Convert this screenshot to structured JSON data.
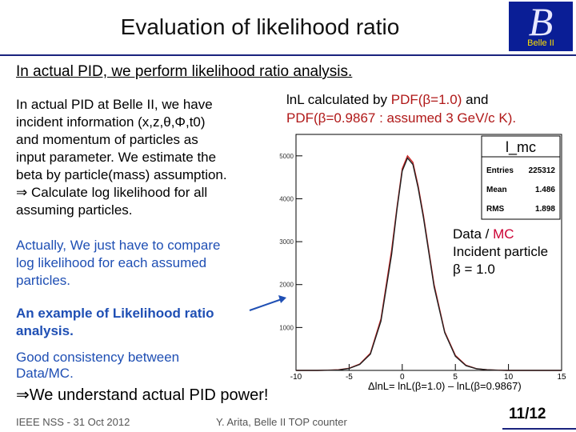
{
  "header": {
    "title": "Evaluation of likelihood ratio",
    "logo_mark": "B",
    "logo_text": "Belle II"
  },
  "subtitle": "In actual PID, we perform likelihood ratio analysis.",
  "left_text": {
    "para1_lines": [
      "In actual PID at Belle II, we have",
      "incident information (x,z,θ,Φ,t0)",
      "and momentum of particles as",
      "input parameter.  We estimate the",
      "beta by particle(mass) assumption.",
      "⇒ Calculate log likelihood for all",
      "assuming particles."
    ],
    "para2_lines": [
      "Actually, We just have to compare",
      "log likelihood for each assumed",
      "particles."
    ],
    "example_lines": [
      "An example of Likelihood ratio",
      "analysis."
    ],
    "consistency_lines": [
      "Good consistency between",
      "Data/MC."
    ],
    "understand": "⇒We understand actual PID power!"
  },
  "description": {
    "line1_pre": "lnL calculated by ",
    "line1_red": "PDF(β=1.0)",
    "line1_post": " and",
    "line2_red": "PDF(β=0.9867 : assumed 3 GeV/c K)."
  },
  "annotation": {
    "data": "Data",
    "slash": " / ",
    "mc": "MC",
    "line2": "Incident particle",
    "line3": "β = 1.0"
  },
  "formula": "ΔlnL= lnL(β=1.0) – lnL(β=0.9867)",
  "footer": {
    "left": "IEEE NSS - 31 Oct 2012",
    "center": "Y. Arita, Belle II TOP counter",
    "page": "11/12"
  },
  "chart_data": {
    "type": "histogram",
    "title": "l_mc",
    "stats": [
      {
        "label": "Entries",
        "value": "225312"
      },
      {
        "label": "Mean",
        "value": "1.486"
      },
      {
        "label": "RMS",
        "value": "1.898"
      }
    ],
    "xlim": [
      -10,
      15
    ],
    "ylim": [
      0,
      5500
    ],
    "x_ticks": [
      -10,
      -5,
      0,
      5,
      10,
      15
    ],
    "x_tick_labels": [
      "-10",
      "-5",
      "0",
      "5",
      "10",
      "15"
    ],
    "y_ticks": [
      1000,
      2000,
      3000,
      4000,
      5000
    ],
    "y_tick_labels": [
      "1000",
      "2000",
      "3000",
      "4000",
      "5000"
    ],
    "series": [
      {
        "name": "MC",
        "color": "#cc2222",
        "x": [
          -10,
          -9,
          -8,
          -7,
          -6,
          -5,
          -4,
          -3,
          -2,
          -1,
          -0.5,
          0,
          0.5,
          1,
          1.5,
          2,
          2.5,
          3,
          4,
          5,
          6,
          7,
          8,
          9,
          10,
          12,
          15
        ],
        "values": [
          0,
          0,
          0,
          5,
          15,
          50,
          150,
          400,
          1200,
          2800,
          3800,
          4700,
          5000,
          4850,
          4300,
          3600,
          2800,
          2000,
          900,
          350,
          120,
          40,
          15,
          5,
          0,
          0,
          0
        ]
      },
      {
        "name": "Data",
        "color": "#222222",
        "x": [
          -10,
          -9,
          -8,
          -7,
          -6,
          -5,
          -4,
          -3,
          -2,
          -1,
          -0.5,
          0,
          0.5,
          1,
          1.5,
          2,
          2.5,
          3,
          4,
          5,
          6,
          7,
          8,
          9,
          10,
          12,
          15
        ],
        "values": [
          0,
          0,
          0,
          4,
          12,
          45,
          140,
          380,
          1150,
          2700,
          3750,
          4650,
          4950,
          4800,
          4250,
          3550,
          2750,
          1950,
          880,
          330,
          110,
          38,
          14,
          4,
          0,
          0,
          0
        ]
      }
    ]
  }
}
